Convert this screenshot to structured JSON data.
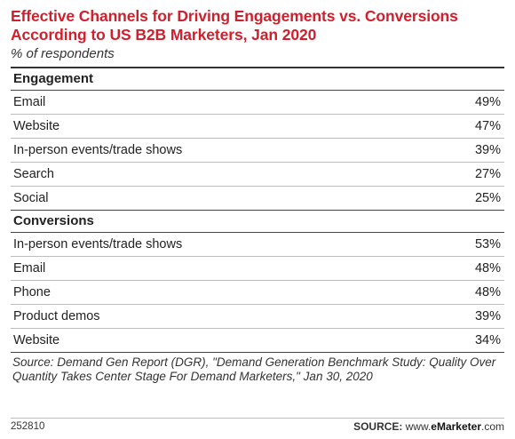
{
  "chart_data": {
    "type": "table",
    "title": "Effective Channels for Driving Engagements vs. Conversions According to US B2B Marketers, Jan 2020",
    "subtitle": "% of respondents",
    "sections": [
      {
        "name": "Engagement",
        "rows": [
          {
            "label": "Email",
            "value": "49%"
          },
          {
            "label": "Website",
            "value": "47%"
          },
          {
            "label": "In-person events/trade shows",
            "value": "39%"
          },
          {
            "label": "Search",
            "value": "27%"
          },
          {
            "label": "Social",
            "value": "25%"
          }
        ]
      },
      {
        "name": "Conversions",
        "rows": [
          {
            "label": "In-person events/trade shows",
            "value": "53%"
          },
          {
            "label": "Email",
            "value": "48%"
          },
          {
            "label": "Phone",
            "value": "48%"
          },
          {
            "label": "Product demos",
            "value": "39%"
          },
          {
            "label": "Website",
            "value": "34%"
          }
        ]
      }
    ]
  },
  "source_note": "Source: Demand Gen Report (DGR), \"Demand Generation Benchmark Study: Quality Over Quantity Takes Center Stage For Demand Marketers,\" Jan 30, 2020",
  "footer": {
    "chart_id": "252810",
    "source_label": "SOURCE:",
    "source_site_prefix": "www.",
    "source_site_brand": "eMarketer",
    "source_site_suffix": ".com"
  },
  "colors": {
    "title": "#d0202e",
    "text": "#222222",
    "rule": "#444444"
  }
}
